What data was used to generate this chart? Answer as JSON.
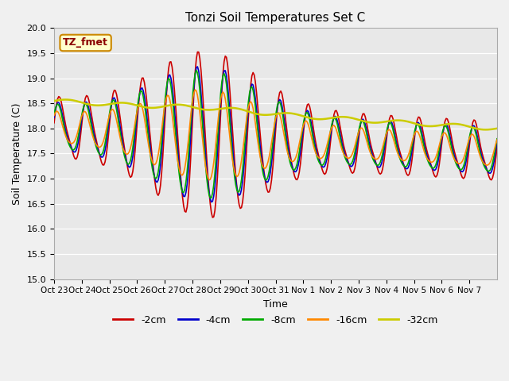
{
  "title": "Tonzi Soil Temperatures Set C",
  "xlabel": "Time",
  "ylabel": "Soil Temperature (C)",
  "ylim": [
    15.0,
    20.0
  ],
  "yticks": [
    15.0,
    15.5,
    16.0,
    16.5,
    17.0,
    17.5,
    18.0,
    18.5,
    19.0,
    19.5,
    20.0
  ],
  "xtick_labels": [
    "Oct 23",
    "Oct 24",
    "Oct 25",
    "Oct 26",
    "Oct 27",
    "Oct 28",
    "Oct 29",
    "Oct 30",
    "Oct 31",
    "Nov 1",
    "Nov 2",
    "Nov 3",
    "Nov 4",
    "Nov 5",
    "Nov 6",
    "Nov 7"
  ],
  "colors": {
    "-2cm": "#cc0000",
    "-4cm": "#0000cc",
    "-8cm": "#00aa00",
    "-16cm": "#ff8800",
    "-32cm": "#cccc00"
  },
  "legend_label": "TZ_fmet",
  "fig_bg_color": "#f0f0f0",
  "plot_bg_color": "#e8e8e8",
  "n_days": 16,
  "n_per_day": 24
}
